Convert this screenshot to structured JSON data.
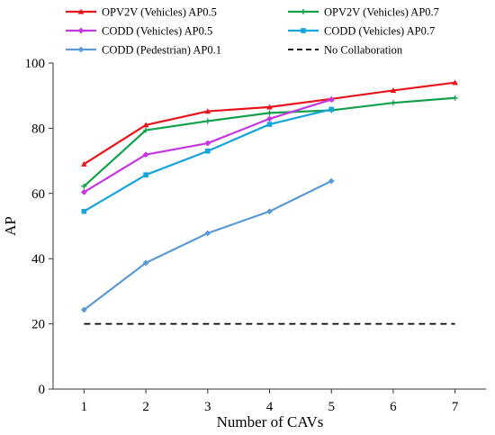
{
  "chart_data": {
    "type": "line",
    "xlabel": "Number of CAVs",
    "ylabel": "AP",
    "xlim": [
      0.5,
      7.5
    ],
    "ylim": [
      0,
      100
    ],
    "x_ticks": [
      "1",
      "2",
      "3",
      "4",
      "5",
      "6",
      "7"
    ],
    "y_ticks": [
      "0",
      "20",
      "40",
      "60",
      "80",
      "100"
    ],
    "grid": false,
    "legend_position": "top",
    "series": [
      {
        "name": "OPV2V (Vehicles)  AP0.5",
        "color": "#e8141b",
        "marker": "triangle",
        "x": [
          1,
          2,
          3,
          4,
          5,
          6,
          7
        ],
        "values": [
          69,
          81,
          85.2,
          86.5,
          89,
          91.6,
          94
        ]
      },
      {
        "name": "OPV2V (Vehicles)  AP0.7",
        "color": "#12a14a",
        "marker": "plus",
        "x": [
          1,
          2,
          3,
          4,
          5,
          6,
          7
        ],
        "values": [
          62.2,
          79.4,
          82.2,
          84.7,
          85.5,
          87.8,
          89.3
        ]
      },
      {
        "name": "CODD (Vehicles)  AP0.5",
        "color": "#c436e0",
        "marker": "diamond",
        "x": [
          1,
          2,
          3,
          4,
          5
        ],
        "values": [
          60.4,
          71.9,
          75.4,
          82.9,
          88.8
        ]
      },
      {
        "name": "CODD (Vehicles)  AP0.7",
        "color": "#15a3dc",
        "marker": "square",
        "x": [
          1,
          2,
          3,
          4,
          5
        ],
        "values": [
          54.5,
          65.7,
          73,
          81.2,
          85.8
        ]
      },
      {
        "name": "CODD (Pedestrian) AP0.1",
        "color": "#5b9bd5",
        "marker": "diamond",
        "x": [
          1,
          2,
          3,
          4,
          5
        ],
        "values": [
          24.3,
          38.7,
          47.8,
          54.5,
          63.8
        ]
      },
      {
        "name": "No Collaboration",
        "color": "#000000",
        "marker": "none",
        "dashed": true,
        "x": [
          1,
          7
        ],
        "values": [
          20,
          20
        ]
      }
    ]
  }
}
